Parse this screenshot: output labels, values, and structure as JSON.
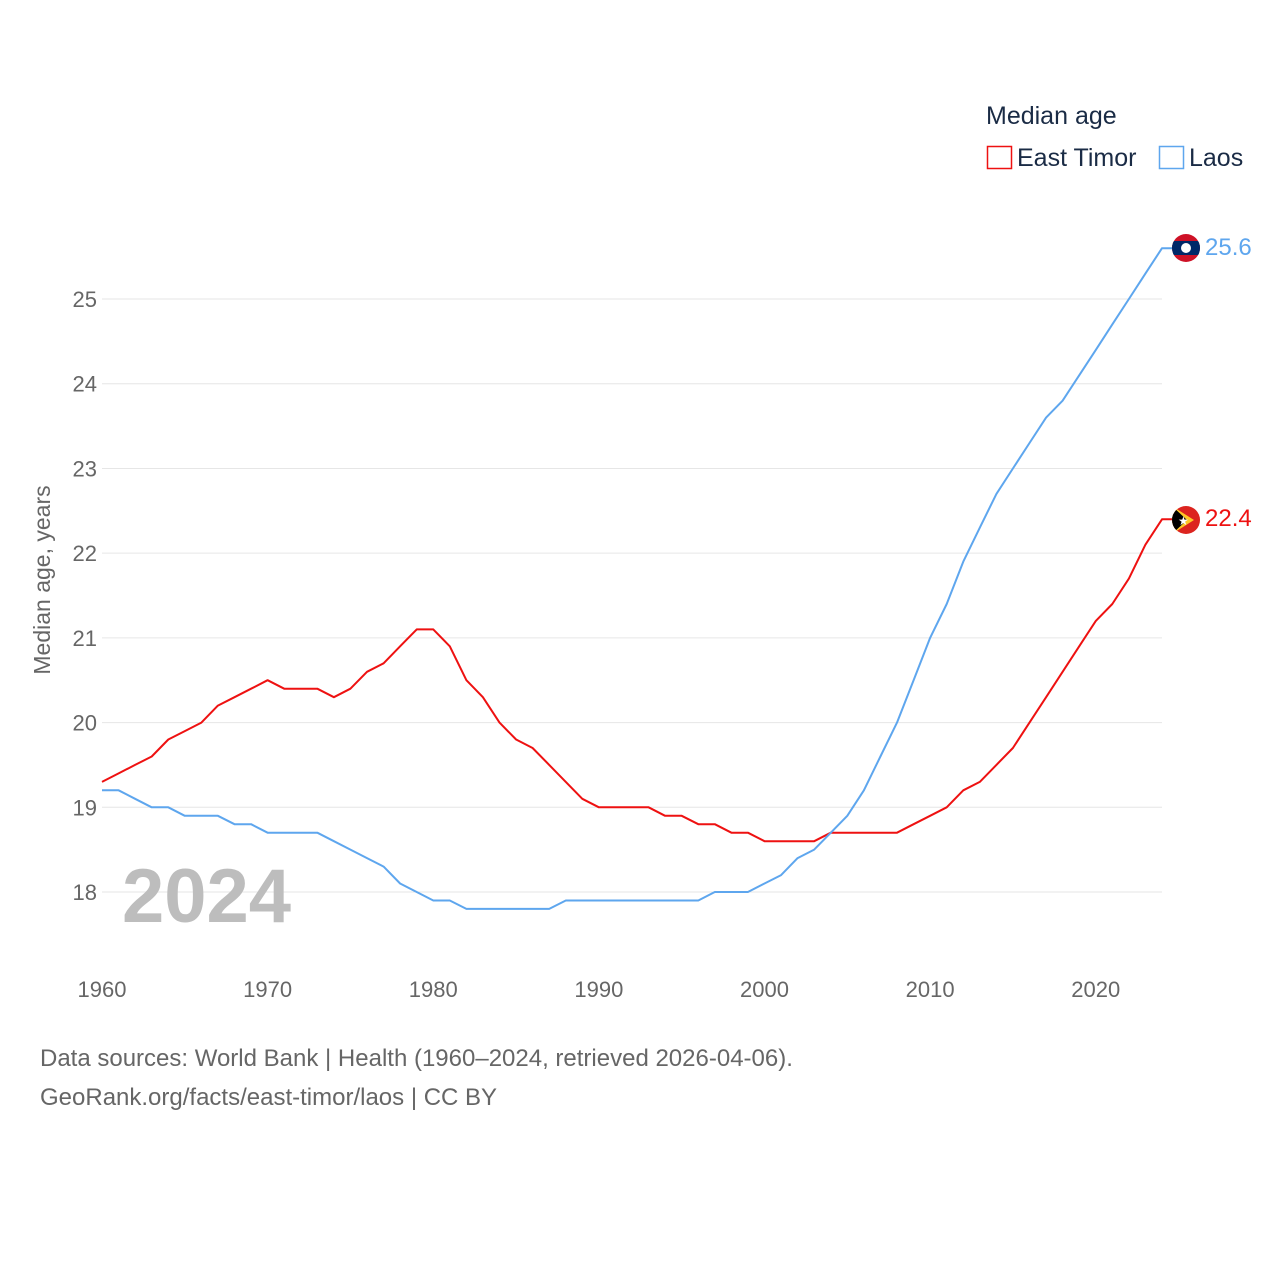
{
  "chart_data": {
    "type": "line",
    "title": "Median age",
    "ylabel": "Median age, years",
    "xlabel": "",
    "year_label": "2024",
    "xlim": [
      1960,
      2024
    ],
    "ylim": [
      17.2,
      26
    ],
    "x_ticks": [
      1960,
      1970,
      1980,
      1990,
      2000,
      2010,
      2020
    ],
    "y_ticks": [
      18,
      19,
      20,
      21,
      22,
      23,
      24,
      25
    ],
    "grid": true,
    "legend_position": "top-right",
    "x": [
      1960,
      1961,
      1962,
      1963,
      1964,
      1965,
      1966,
      1967,
      1968,
      1969,
      1970,
      1971,
      1972,
      1973,
      1974,
      1975,
      1976,
      1977,
      1978,
      1979,
      1980,
      1981,
      1982,
      1983,
      1984,
      1985,
      1986,
      1987,
      1988,
      1989,
      1990,
      1991,
      1992,
      1993,
      1994,
      1995,
      1996,
      1997,
      1998,
      1999,
      2000,
      2001,
      2002,
      2003,
      2004,
      2005,
      2006,
      2007,
      2008,
      2009,
      2010,
      2011,
      2012,
      2013,
      2014,
      2015,
      2016,
      2017,
      2018,
      2019,
      2020,
      2021,
      2022,
      2023,
      2024
    ],
    "series": [
      {
        "name": "East Timor",
        "color": "#ee1111",
        "end_label": "22.4",
        "values": [
          19.3,
          19.4,
          19.5,
          19.6,
          19.8,
          19.9,
          20.0,
          20.2,
          20.3,
          20.4,
          20.5,
          20.4,
          20.4,
          20.4,
          20.3,
          20.4,
          20.6,
          20.7,
          20.9,
          21.1,
          21.1,
          20.9,
          20.5,
          20.3,
          20.0,
          19.8,
          19.7,
          19.5,
          19.3,
          19.1,
          19.0,
          19.0,
          19.0,
          19.0,
          18.9,
          18.9,
          18.8,
          18.8,
          18.7,
          18.7,
          18.6,
          18.6,
          18.6,
          18.6,
          18.7,
          18.7,
          18.7,
          18.7,
          18.7,
          18.8,
          18.9,
          19.0,
          19.2,
          19.3,
          19.5,
          19.7,
          20.0,
          20.3,
          20.6,
          20.9,
          21.2,
          21.4,
          21.7,
          22.1,
          22.4
        ]
      },
      {
        "name": "Laos",
        "color": "#5ea6ee",
        "end_label": "25.6",
        "values": [
          19.2,
          19.2,
          19.1,
          19.0,
          19.0,
          18.9,
          18.9,
          18.9,
          18.8,
          18.8,
          18.7,
          18.7,
          18.7,
          18.7,
          18.6,
          18.5,
          18.4,
          18.3,
          18.1,
          18.0,
          17.9,
          17.9,
          17.8,
          17.8,
          17.8,
          17.8,
          17.8,
          17.8,
          17.9,
          17.9,
          17.9,
          17.9,
          17.9,
          17.9,
          17.9,
          17.9,
          17.9,
          18.0,
          18.0,
          18.0,
          18.1,
          18.2,
          18.4,
          18.5,
          18.7,
          18.9,
          19.2,
          19.6,
          20.0,
          20.5,
          21.0,
          21.4,
          21.9,
          22.3,
          22.7,
          23.0,
          23.3,
          23.6,
          23.8,
          24.1,
          24.4,
          24.7,
          25.0,
          25.3,
          25.6
        ]
      }
    ]
  },
  "footer": {
    "line1": "Data sources: World Bank | Health (1960–2024, retrieved 2026-04-06).",
    "line2": "GeoRank.org/facts/east-timor/laos | CC BY"
  }
}
